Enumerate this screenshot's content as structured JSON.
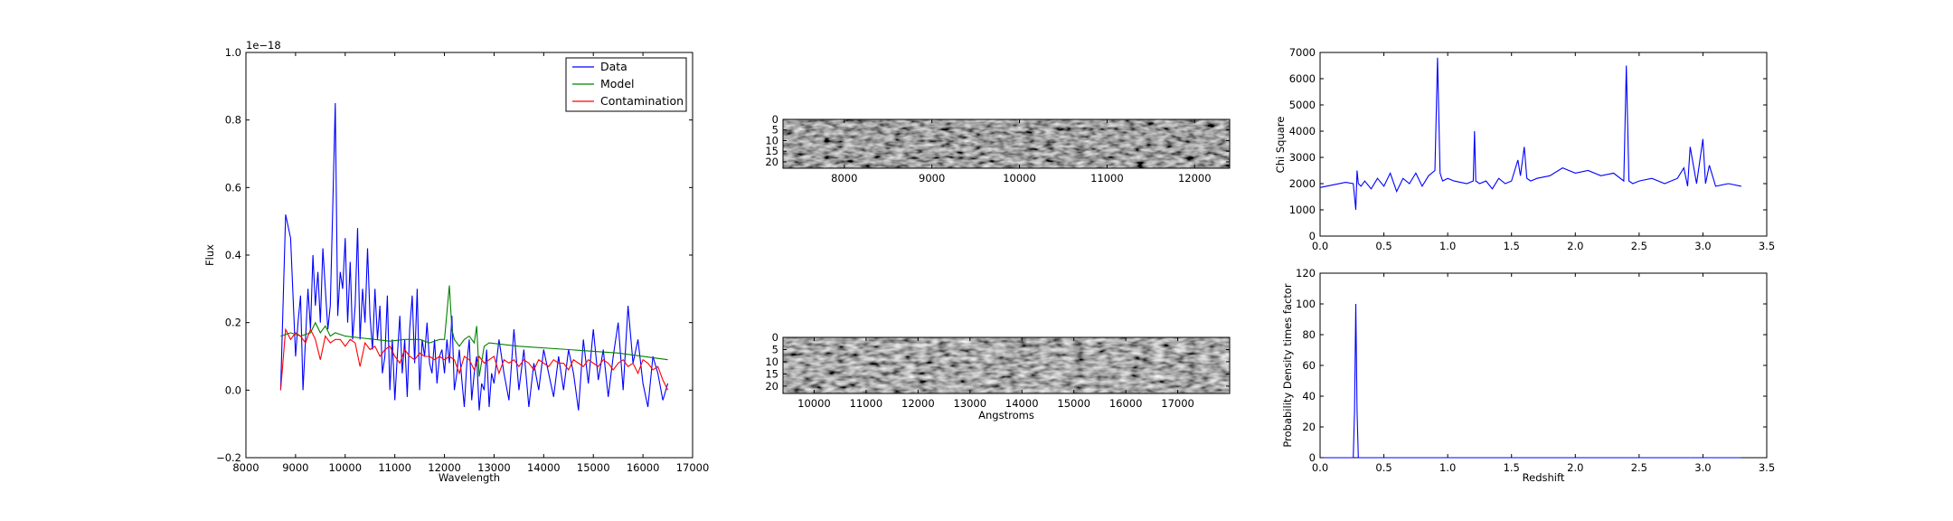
{
  "chart_data": [
    {
      "type": "line",
      "id": "spectrum",
      "xlabel": "Wavelength",
      "ylabel": "Flux",
      "offset_text": "1e−18",
      "xlim": [
        8000,
        17000
      ],
      "ylim": [
        -0.2,
        1.0
      ],
      "x_ticks": [
        "8000",
        "9000",
        "10000",
        "11000",
        "12000",
        "13000",
        "14000",
        "15000",
        "16000",
        "17000"
      ],
      "y_ticks": [
        "−0.2",
        "0.0",
        "0.2",
        "0.4",
        "0.6",
        "0.8",
        "1.0"
      ],
      "legend": {
        "position": "upper-right",
        "entries": [
          "Data",
          "Model",
          "Contamination"
        ]
      },
      "series": [
        {
          "name": "Data",
          "color": "#0000ff",
          "x": [
            8700,
            8800,
            8900,
            9000,
            9050,
            9100,
            9150,
            9200,
            9250,
            9300,
            9350,
            9400,
            9450,
            9500,
            9550,
            9600,
            9650,
            9700,
            9750,
            9800,
            9850,
            9900,
            9950,
            10000,
            10050,
            10100,
            10150,
            10200,
            10250,
            10300,
            10350,
            10400,
            10450,
            10500,
            10550,
            10600,
            10650,
            10700,
            10750,
            10800,
            10850,
            10900,
            10950,
            11000,
            11050,
            11100,
            11150,
            11200,
            11250,
            11300,
            11350,
            11400,
            11450,
            11500,
            11550,
            11600,
            11650,
            11700,
            11750,
            11800,
            11850,
            11900,
            11950,
            12000,
            12050,
            12100,
            12150,
            12200,
            12250,
            12300,
            12350,
            12400,
            12450,
            12500,
            12550,
            12600,
            12650,
            12700,
            12750,
            12800,
            12850,
            12900,
            12950,
            13000,
            13100,
            13200,
            13300,
            13400,
            13500,
            13600,
            13700,
            13800,
            13900,
            14000,
            14100,
            14200,
            14300,
            14400,
            14500,
            14600,
            14700,
            14800,
            14900,
            15000,
            15100,
            15200,
            15300,
            15400,
            15500,
            15600,
            15700,
            15800,
            15900,
            16000,
            16100,
            16200,
            16300,
            16400,
            16500
          ],
          "y": [
            0.0,
            0.52,
            0.45,
            0.1,
            0.2,
            0.28,
            0.0,
            0.15,
            0.3,
            0.18,
            0.4,
            0.25,
            0.35,
            0.2,
            0.42,
            0.3,
            0.18,
            0.25,
            0.55,
            0.85,
            0.22,
            0.35,
            0.3,
            0.45,
            0.2,
            0.38,
            0.15,
            0.25,
            0.48,
            0.15,
            0.3,
            0.2,
            0.42,
            0.22,
            0.12,
            0.3,
            0.15,
            0.25,
            0.05,
            0.1,
            0.28,
            0.0,
            0.15,
            -0.03,
            0.1,
            0.22,
            0.05,
            0.15,
            -0.02,
            0.18,
            0.28,
            0.08,
            0.3,
            0.0,
            0.15,
            0.1,
            0.2,
            0.08,
            0.05,
            0.15,
            0.02,
            0.1,
            0.12,
            0.05,
            0.15,
            0.08,
            0.22,
            0.0,
            0.05,
            0.12,
            0.03,
            -0.05,
            0.08,
            0.15,
            -0.03,
            0.05,
            0.1,
            -0.06,
            0.02,
            0.0,
            0.12,
            -0.05,
            0.05,
            0.02,
            0.15,
            0.05,
            -0.03,
            0.18,
            0.0,
            0.12,
            -0.05,
            0.08,
            0.0,
            0.12,
            0.05,
            -0.02,
            0.1,
            0.0,
            0.12,
            0.05,
            -0.06,
            0.15,
            0.02,
            0.18,
            0.03,
            0.12,
            -0.02,
            0.1,
            0.2,
            0.0,
            0.25,
            0.08,
            0.15,
            0.02,
            -0.05,
            0.1,
            0.05,
            -0.03,
            0.02
          ]
        },
        {
          "name": "Model",
          "color": "#008000",
          "x": [
            8700,
            8900,
            9100,
            9300,
            9400,
            9500,
            9600,
            9700,
            9800,
            10000,
            10300,
            10600,
            10900,
            11200,
            11500,
            11700,
            11900,
            12000,
            12100,
            12150,
            12200,
            12300,
            12400,
            12500,
            12600,
            12650,
            12700,
            12800,
            12900,
            13500,
            14500,
            15500,
            16500
          ],
          "y": [
            0.16,
            0.17,
            0.16,
            0.17,
            0.2,
            0.17,
            0.19,
            0.16,
            0.17,
            0.16,
            0.155,
            0.15,
            0.145,
            0.15,
            0.15,
            0.14,
            0.15,
            0.15,
            0.31,
            0.18,
            0.15,
            0.13,
            0.15,
            0.16,
            0.14,
            0.19,
            0.04,
            0.13,
            0.14,
            0.13,
            0.12,
            0.11,
            0.09
          ]
        },
        {
          "name": "Contamination",
          "color": "#ff0000",
          "x": [
            8700,
            8800,
            8900,
            9000,
            9100,
            9200,
            9300,
            9400,
            9500,
            9600,
            9700,
            9800,
            9900,
            10000,
            10100,
            10200,
            10300,
            10400,
            10500,
            10600,
            10700,
            10800,
            10900,
            11000,
            11100,
            11200,
            11300,
            11400,
            11500,
            11600,
            11700,
            11800,
            11900,
            12000,
            12100,
            12200,
            12300,
            12400,
            12500,
            12600,
            12700,
            12800,
            12900,
            13000,
            13100,
            13200,
            13300,
            13400,
            13500,
            13600,
            13700,
            13800,
            13900,
            14000,
            14100,
            14200,
            14300,
            14400,
            14500,
            14600,
            14700,
            14800,
            14900,
            15000,
            15100,
            15200,
            15300,
            15400,
            15500,
            15600,
            15700,
            15800,
            15900,
            16000,
            16100,
            16200,
            16300,
            16400,
            16500
          ],
          "y": [
            0.0,
            0.18,
            0.15,
            0.17,
            0.16,
            0.14,
            0.18,
            0.15,
            0.09,
            0.16,
            0.14,
            0.15,
            0.15,
            0.13,
            0.15,
            0.14,
            0.07,
            0.14,
            0.12,
            0.13,
            0.1,
            0.12,
            0.13,
            0.1,
            0.08,
            0.12,
            0.1,
            0.09,
            0.11,
            0.1,
            0.1,
            0.09,
            0.1,
            0.09,
            0.1,
            0.09,
            0.05,
            0.1,
            0.09,
            0.06,
            0.1,
            0.08,
            0.09,
            0.1,
            0.05,
            0.09,
            0.08,
            0.09,
            0.07,
            0.09,
            0.08,
            0.06,
            0.09,
            0.08,
            0.07,
            0.09,
            0.08,
            0.08,
            0.06,
            0.09,
            0.08,
            0.07,
            0.09,
            0.08,
            0.07,
            0.09,
            0.08,
            0.06,
            0.08,
            0.09,
            0.07,
            0.08,
            0.05,
            0.09,
            0.08,
            0.06,
            0.07,
            0.03,
            0.0
          ]
        }
      ]
    },
    {
      "type": "heatmap",
      "id": "spectrum2d-top",
      "xlabel": "",
      "xlim": [
        7300,
        12400
      ],
      "ylim": [
        23,
        0
      ],
      "x_ticks": [
        "8000",
        "9000",
        "10000",
        "11000",
        "12000"
      ],
      "x_tick_values": [
        8000,
        9000,
        10000,
        11000,
        12000
      ],
      "y_ticks": [
        "0",
        "5",
        "10",
        "15",
        "20"
      ],
      "y_tick_values": [
        0,
        5,
        10,
        15,
        20
      ],
      "colormap": "gray"
    },
    {
      "type": "heatmap",
      "id": "spectrum2d-bottom",
      "xlabel": "Angstroms",
      "xlim": [
        9400,
        18000
      ],
      "ylim": [
        23,
        0
      ],
      "x_ticks": [
        "10000",
        "11000",
        "12000",
        "13000",
        "14000",
        "15000",
        "16000",
        "17000"
      ],
      "x_tick_values": [
        10000,
        11000,
        12000,
        13000,
        14000,
        15000,
        16000,
        17000
      ],
      "y_ticks": [
        "0",
        "5",
        "10",
        "15",
        "20"
      ],
      "y_tick_values": [
        0,
        5,
        10,
        15,
        20
      ],
      "colormap": "gray"
    },
    {
      "type": "line",
      "id": "chisq",
      "xlabel": "",
      "ylabel": "Chi Square",
      "xlim": [
        0.0,
        3.5
      ],
      "ylim": [
        0,
        7000
      ],
      "x_ticks": [
        "0.0",
        "0.5",
        "1.0",
        "1.5",
        "2.0",
        "2.5",
        "3.0",
        "3.5"
      ],
      "y_ticks": [
        "0",
        "1000",
        "2000",
        "3000",
        "4000",
        "5000",
        "6000",
        "7000"
      ],
      "series": [
        {
          "color": "#0000ff",
          "x": [
            0.0,
            0.1,
            0.2,
            0.26,
            0.28,
            0.29,
            0.3,
            0.32,
            0.35,
            0.4,
            0.45,
            0.5,
            0.55,
            0.6,
            0.65,
            0.7,
            0.75,
            0.8,
            0.85,
            0.9,
            0.92,
            0.94,
            0.96,
            1.0,
            1.05,
            1.1,
            1.15,
            1.2,
            1.21,
            1.22,
            1.25,
            1.3,
            1.35,
            1.4,
            1.45,
            1.5,
            1.55,
            1.57,
            1.6,
            1.62,
            1.65,
            1.7,
            1.8,
            1.9,
            2.0,
            2.1,
            2.2,
            2.3,
            2.38,
            2.4,
            2.42,
            2.45,
            2.5,
            2.6,
            2.7,
            2.8,
            2.85,
            2.88,
            2.9,
            2.95,
            3.0,
            3.02,
            3.05,
            3.1,
            3.2,
            3.3
          ],
          "y": [
            1850,
            1950,
            2050,
            2000,
            1000,
            2500,
            2000,
            1900,
            2100,
            1800,
            2200,
            1900,
            2400,
            1700,
            2200,
            2000,
            2400,
            1900,
            2300,
            2500,
            6800,
            2400,
            2100,
            2200,
            2100,
            2050,
            2000,
            2100,
            4000,
            2100,
            2000,
            2100,
            1800,
            2200,
            2000,
            2100,
            2900,
            2300,
            3400,
            2200,
            2100,
            2200,
            2300,
            2600,
            2400,
            2500,
            2300,
            2400,
            2100,
            6500,
            2100,
            2000,
            2100,
            2200,
            2000,
            2200,
            2600,
            1900,
            3400,
            2000,
            3700,
            2000,
            2700,
            1900,
            2000,
            1900
          ]
        }
      ]
    },
    {
      "type": "line",
      "id": "pdf",
      "xlabel": "Redshift",
      "ylabel": "Probability Density times factor",
      "xlim": [
        0.0,
        3.5
      ],
      "ylim": [
        0,
        120
      ],
      "x_ticks": [
        "0.0",
        "0.5",
        "1.0",
        "1.5",
        "2.0",
        "2.5",
        "3.0",
        "3.5"
      ],
      "y_ticks": [
        "0",
        "20",
        "40",
        "60",
        "80",
        "100",
        "120"
      ],
      "series": [
        {
          "color": "#0000ff",
          "x": [
            0.0,
            0.26,
            0.27,
            0.28,
            0.29,
            0.3,
            3.3
          ],
          "y": [
            0,
            0,
            30,
            100,
            30,
            0,
            0
          ]
        }
      ]
    }
  ]
}
